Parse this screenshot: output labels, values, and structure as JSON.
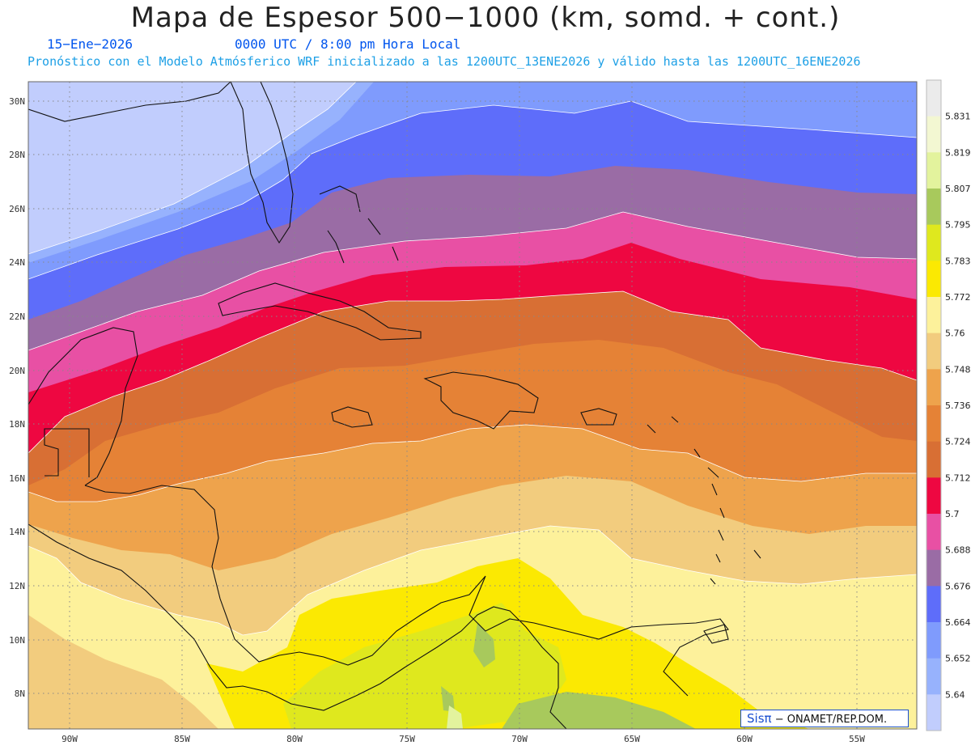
{
  "header": {
    "title": "Mapa de Espesor 500−1000 (km, somd. + cont.)",
    "date": "15−Ene−2026",
    "time": "0000 UTC / 8:00 pm Hora Local",
    "forecast": "Pronóstico con el Modelo Atmósferico WRF inicializado a las 1200UTC_13ENE2026 y válido hasta las  1200UTC_16ENE2026"
  },
  "axes": {
    "lat_labels": [
      "30N",
      "28N",
      "26N",
      "24N",
      "22N",
      "20N",
      "18N",
      "16N",
      "14N",
      "12N",
      "10N",
      "8N"
    ],
    "lon_labels": [
      "90W",
      "85W",
      "80W",
      "75W",
      "70W",
      "65W",
      "60W",
      "55W"
    ]
  },
  "legend": {
    "labels": [
      "5.831",
      "5.819",
      "5.807",
      "5.795",
      "5.783",
      "5.772",
      "5.76",
      "5.748",
      "5.736",
      "5.724",
      "5.712",
      "5.7",
      "5.688",
      "5.676",
      "5.664",
      "5.652",
      "5.64"
    ],
    "colors": [
      "#ebebeb",
      "#f3f7d2",
      "#e3f39d",
      "#a8c95c",
      "#dfe81e",
      "#fbe902",
      "#fdf19b",
      "#f2cc7e",
      "#eea34c",
      "#e58236",
      "#d86f34",
      "#ee0741",
      "#e850a4",
      "#9a6ca5",
      "#5e6dfa",
      "#7f9bfd",
      "#97b2fd",
      "#c1cdfd"
    ]
  },
  "credit": {
    "brand": "Sisπ",
    "org": "− ONAMET/REP.DOM."
  }
}
